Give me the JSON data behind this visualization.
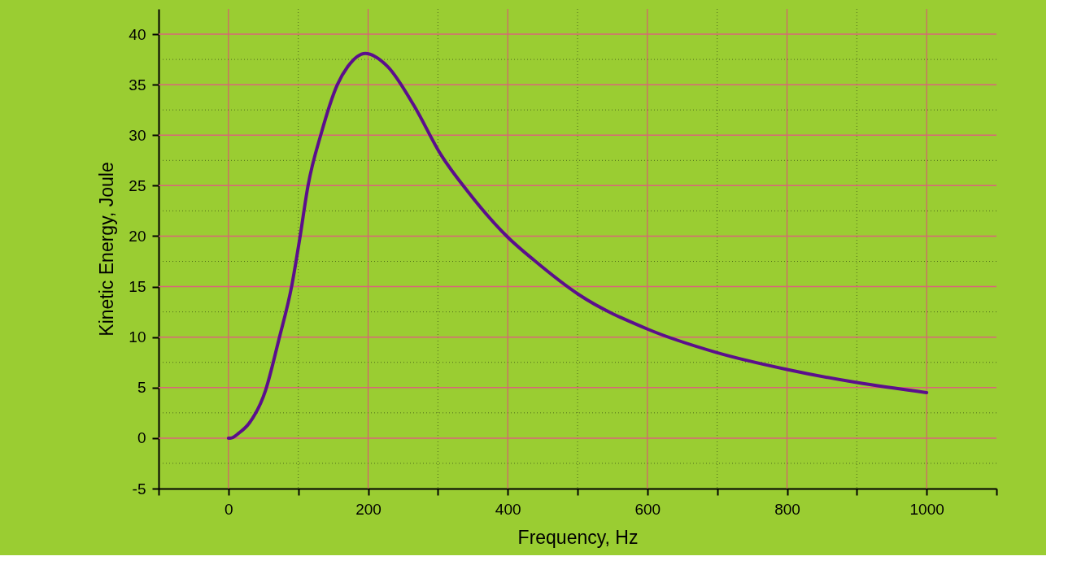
{
  "chart_data": {
    "type": "line",
    "xlabel": "Frequency, Hz",
    "ylabel": "Kinetic Energy, Joule",
    "x": [
      0,
      3,
      15,
      30,
      53,
      72,
      91,
      102,
      114,
      133,
      156,
      171,
      196,
      228,
      266,
      304,
      343,
      400,
      438,
      502,
      600,
      698,
      800,
      900,
      1000
    ],
    "series": [
      {
        "color": "#5b0f8c",
        "values": [
          0,
          0,
          0.5,
          1.5,
          4.7,
          9.7,
          15.2,
          19.7,
          25,
          30.2,
          35,
          36.8,
          38.1,
          36.8,
          32.9,
          28.1,
          24.4,
          19.9,
          17.6,
          14.2,
          10.8,
          8.5,
          6.8,
          5.5,
          4.5
        ]
      }
    ],
    "xlim": [
      -100,
      1100
    ],
    "xticks": [
      {
        "value": -100,
        "label": null
      },
      0,
      {
        "value": 100,
        "label": null
      },
      200,
      {
        "value": 300,
        "label": null
      },
      400,
      {
        "value": 500,
        "label": null
      },
      600,
      {
        "value": 700,
        "label": null
      },
      800,
      {
        "value": 900,
        "label": null
      },
      1000,
      {
        "value": 1100,
        "label": null
      }
    ],
    "ylim": [
      -5,
      42.5
    ],
    "yticks": [
      -5,
      {
        "value": -2.5,
        "label": null
      },
      0,
      {
        "value": 2.5,
        "label": null
      },
      5,
      {
        "value": 7.5,
        "label": null
      },
      10,
      {
        "value": 12.5,
        "label": null
      },
      15,
      {
        "value": 17.5,
        "label": null
      },
      20,
      {
        "value": 22.5,
        "label": null
      },
      25,
      {
        "value": 27.5,
        "label": null
      },
      30,
      {
        "value": 32.5,
        "label": null
      },
      35,
      {
        "value": 37.5,
        "label": null
      },
      40
    ],
    "grid": true,
    "marker": "none",
    "line_style": "solid"
  }
}
